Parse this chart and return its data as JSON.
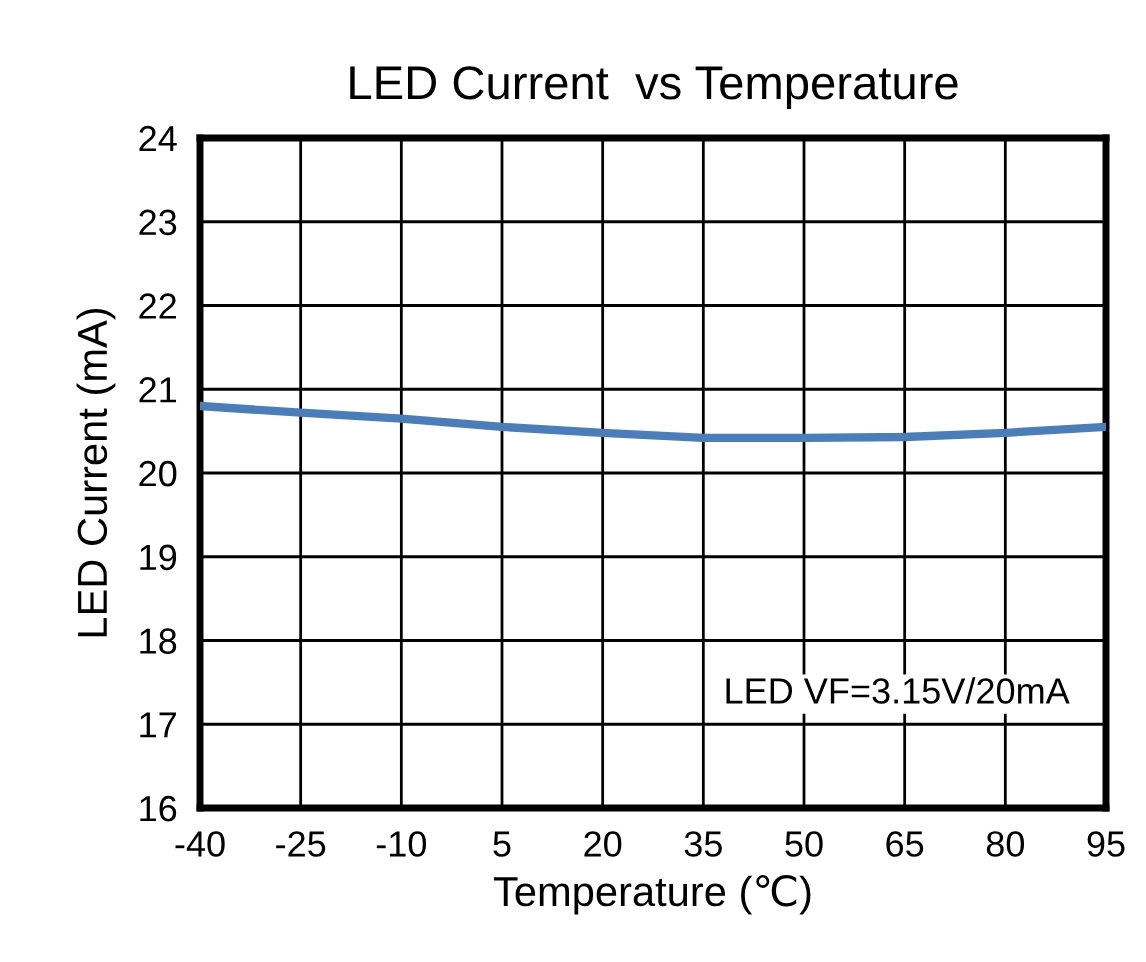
{
  "chart_data": {
    "type": "line",
    "title": "LED Current  vs Temperature",
    "xlabel": "Temperature (℃)",
    "ylabel": "LED Current (mA)",
    "x": [
      -40,
      -25,
      -10,
      5,
      20,
      35,
      50,
      65,
      80,
      95
    ],
    "series": [
      {
        "color": "#4a7ebb",
        "values": [
          20.8,
          20.72,
          20.65,
          20.55,
          20.48,
          20.42,
          20.42,
          20.43,
          20.48,
          20.55
        ]
      }
    ],
    "xlim": [
      -40,
      95
    ],
    "xticks": [
      -40,
      -25,
      -10,
      5,
      20,
      35,
      50,
      65,
      80,
      95
    ],
    "ylim": [
      16,
      24
    ],
    "yticks": [
      16,
      17,
      18,
      19,
      20,
      21,
      22,
      23,
      24
    ],
    "grid": true,
    "legend": false,
    "marker": "none",
    "line_style": "solid",
    "annotations": [
      "LED VF=3.15V/20mA"
    ]
  }
}
